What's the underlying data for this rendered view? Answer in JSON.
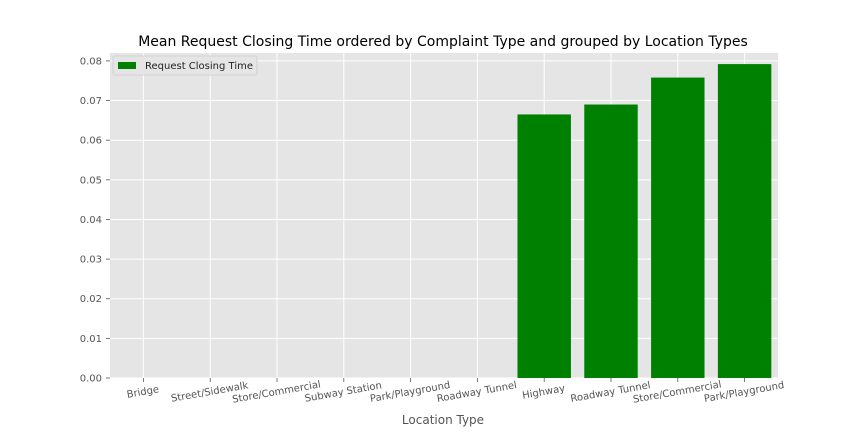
{
  "chart_data": {
    "type": "bar",
    "title": "Mean Request Closing Time ordered by Complaint Type and grouped by Location Types",
    "xlabel": "Location Type",
    "ylabel": "",
    "categories": [
      "Bridge",
      "Street/Sidewalk",
      "Store/Commercial",
      "Subway Station",
      "Park/Playground",
      "Roadway Tunnel",
      "Highway",
      "Roadway Tunnel",
      "Store/Commercial",
      "Park/Playground"
    ],
    "series": [
      {
        "name": "Request Closing Time",
        "values": [
          0.0,
          0.0,
          0.0,
          0.0,
          0.0,
          0.0,
          0.0665,
          0.069,
          0.0758,
          0.0792
        ]
      }
    ],
    "ylim": [
      0,
      0.082
    ],
    "yticks": [
      "0.00",
      "0.01",
      "0.02",
      "0.03",
      "0.04",
      "0.05",
      "0.06",
      "0.07",
      "0.08"
    ],
    "grid": true,
    "legend_position": "top-left",
    "colors": {
      "bar": "#008000",
      "plot_bg": "#e5e5e5",
      "grid": "#ffffff"
    }
  }
}
